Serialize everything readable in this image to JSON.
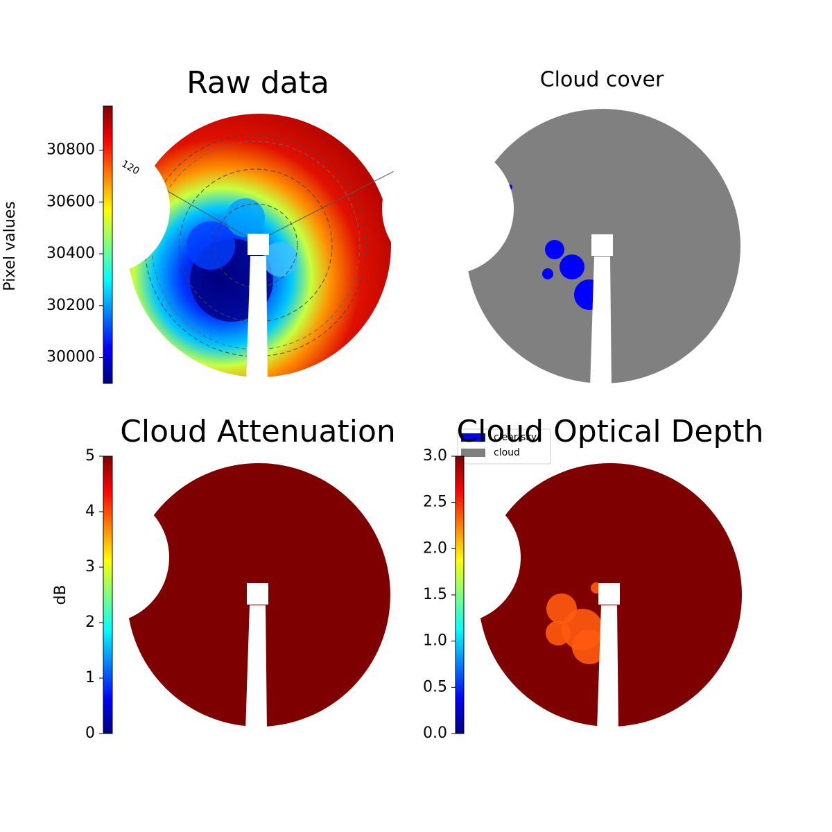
{
  "chart_data": [
    {
      "type": "image",
      "title": "Raw data",
      "ylabel": "Pixel values",
      "cmap": "jet",
      "ylim": [
        29900,
        30970
      ],
      "yticks": [
        30000,
        30200,
        30400,
        30600,
        30800
      ],
      "annotations": [
        "120"
      ]
    },
    {
      "type": "image",
      "title": "Cloud cover",
      "series": [
        {
          "name": "clear sky",
          "color": "#0000ff"
        },
        {
          "name": "cloud",
          "color": "#808080"
        }
      ]
    },
    {
      "type": "image",
      "title": "Cloud Attenuation",
      "ylabel": "dB",
      "cmap": "jet",
      "ylim": [
        0,
        5
      ],
      "yticks": [
        0,
        1,
        2,
        3,
        4,
        5
      ]
    },
    {
      "type": "image",
      "title": "Cloud Optical Depth",
      "cmap": "jet",
      "ylim": [
        0,
        3
      ],
      "yticks": [
        {
          "value": 0,
          "label": "0.0"
        },
        {
          "value": 0.5,
          "label": "0.5"
        },
        {
          "value": 1,
          "label": "1.0"
        },
        {
          "value": 1.5,
          "label": "1.5"
        },
        {
          "value": 2,
          "label": "2.0"
        },
        {
          "value": 2.5,
          "label": "2.5"
        },
        {
          "value": 3,
          "label": "3.0"
        }
      ]
    }
  ]
}
